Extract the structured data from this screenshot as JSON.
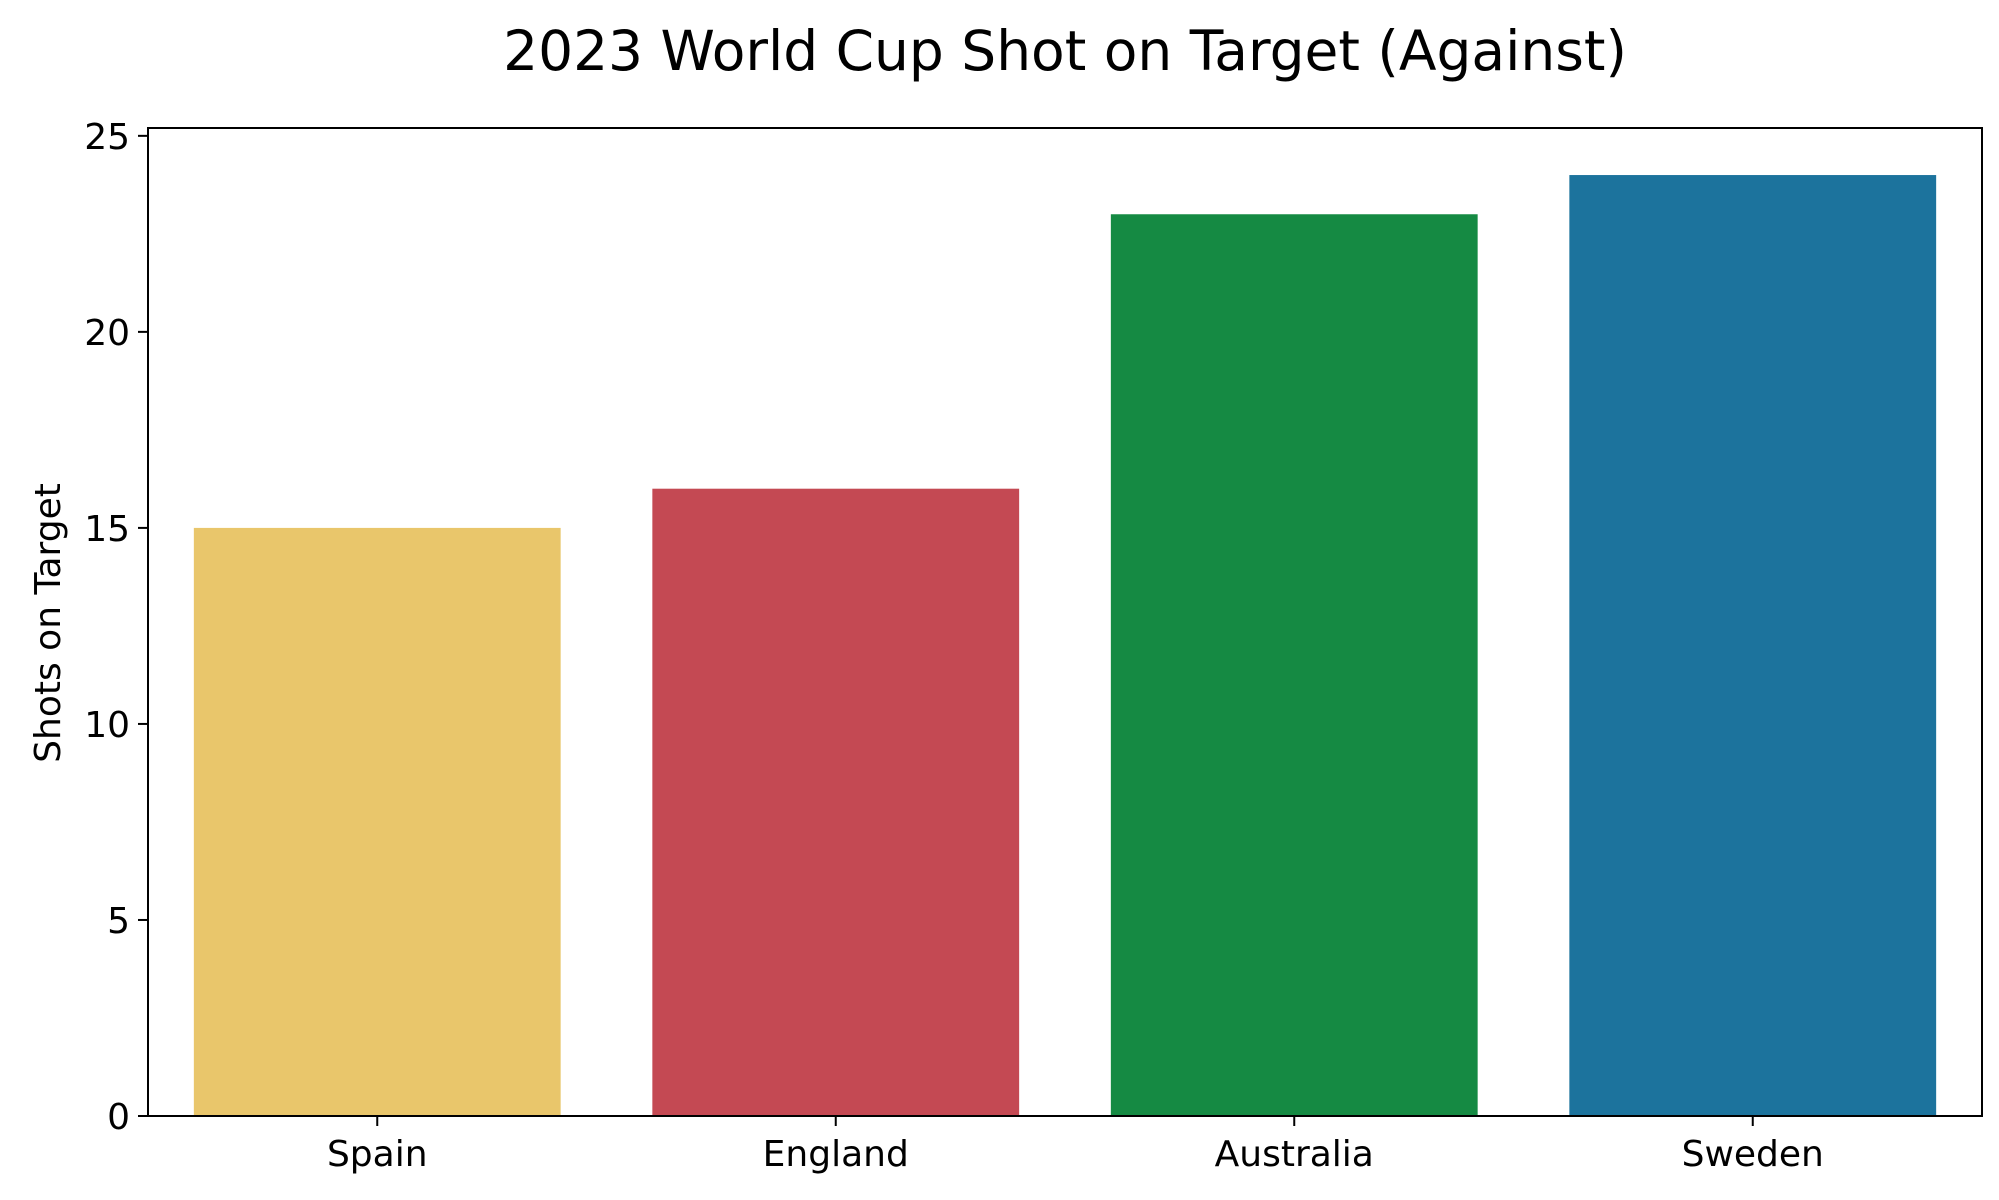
{
  "chart_data": {
    "type": "bar",
    "title": "2023 World Cup Shot on Target (Against)",
    "xlabel": "",
    "ylabel": "Shots on Target",
    "categories": [
      "Spain",
      "England",
      "Australia",
      "Sweden"
    ],
    "values": [
      15,
      16,
      23,
      24
    ],
    "colors": [
      "#E9C66B",
      "#C44953",
      "#158A43",
      "#1C739D"
    ],
    "ylim": [
      0,
      25.2
    ],
    "yticks": [
      0,
      5,
      10,
      15,
      20,
      25
    ],
    "grid": false,
    "legend": null
  }
}
